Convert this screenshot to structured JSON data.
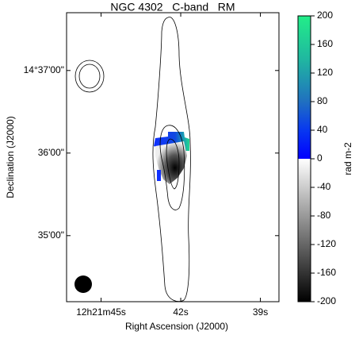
{
  "chart_data": {
    "type": "image",
    "title": "NGC 4302   C-band   RM",
    "x_label": "Right Ascension (J2000)",
    "y_label": "Declination (J2000)",
    "xlim": [
      46.3,
      38.3
    ],
    "xticks": [
      {
        "value": 45,
        "label": "12h21m45s"
      },
      {
        "value": 42,
        "label": "42s"
      },
      {
        "value": 39,
        "label": "39s"
      }
    ],
    "ylim": [
      34.2,
      37.7
    ],
    "yticks": [
      {
        "value": 37,
        "label": "14°37'00\""
      },
      {
        "value": 36,
        "label": "36'00\""
      },
      {
        "value": 35,
        "label": "35'00\""
      }
    ],
    "colorbar": {
      "label": "rad m-2",
      "lim": [
        -200,
        200
      ],
      "ticks": [
        200,
        160,
        120,
        80,
        40,
        0,
        -40,
        -80,
        -120,
        -160,
        -200
      ]
    }
  }
}
